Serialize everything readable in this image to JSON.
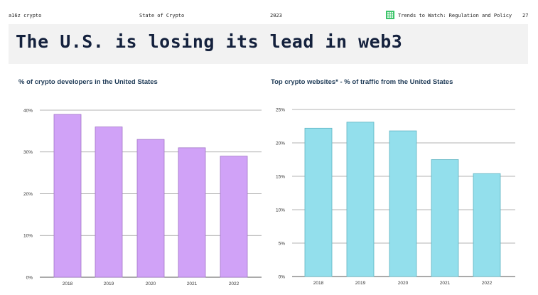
{
  "header": {
    "brand": "a16z crypto",
    "report": "State of Crypto",
    "year": "2023",
    "section": "Trends to Watch: Regulation and Policy",
    "page_number": "27",
    "section_icon": "grid-icon",
    "accent_color": "#3cc46a"
  },
  "page_title": "The U.S. is losing its lead in web3",
  "chart_data": [
    {
      "type": "bar",
      "title": "% of crypto developers in the United States",
      "categories": [
        "2018",
        "2019",
        "2020",
        "2021",
        "2022"
      ],
      "values": [
        39,
        36,
        33,
        31,
        29
      ],
      "ylim": [
        0,
        40
      ],
      "yticks": [
        0,
        10,
        20,
        30,
        40
      ],
      "ytick_labels": [
        "0%",
        "10%",
        "20%",
        "30%",
        "40%"
      ],
      "xlabel": "",
      "ylabel": "",
      "grid": true,
      "bar_color": "#d0a2f7",
      "bar_edge_color": "#a277c7"
    },
    {
      "type": "bar",
      "title": "Top crypto websites* - % of traffic from the United States",
      "categories": [
        "2018",
        "2019",
        "2020",
        "2021",
        "2022"
      ],
      "values": [
        22.2,
        23.1,
        21.8,
        17.5,
        15.4
      ],
      "ylim": [
        0,
        25
      ],
      "yticks": [
        0,
        5,
        10,
        15,
        20,
        25
      ],
      "ytick_labels": [
        "0%",
        "5%",
        "10%",
        "15%",
        "20%",
        "25%"
      ],
      "xlabel": "",
      "ylabel": "",
      "grid": true,
      "bar_color": "#93dfec",
      "bar_edge_color": "#5fb3c2"
    }
  ]
}
